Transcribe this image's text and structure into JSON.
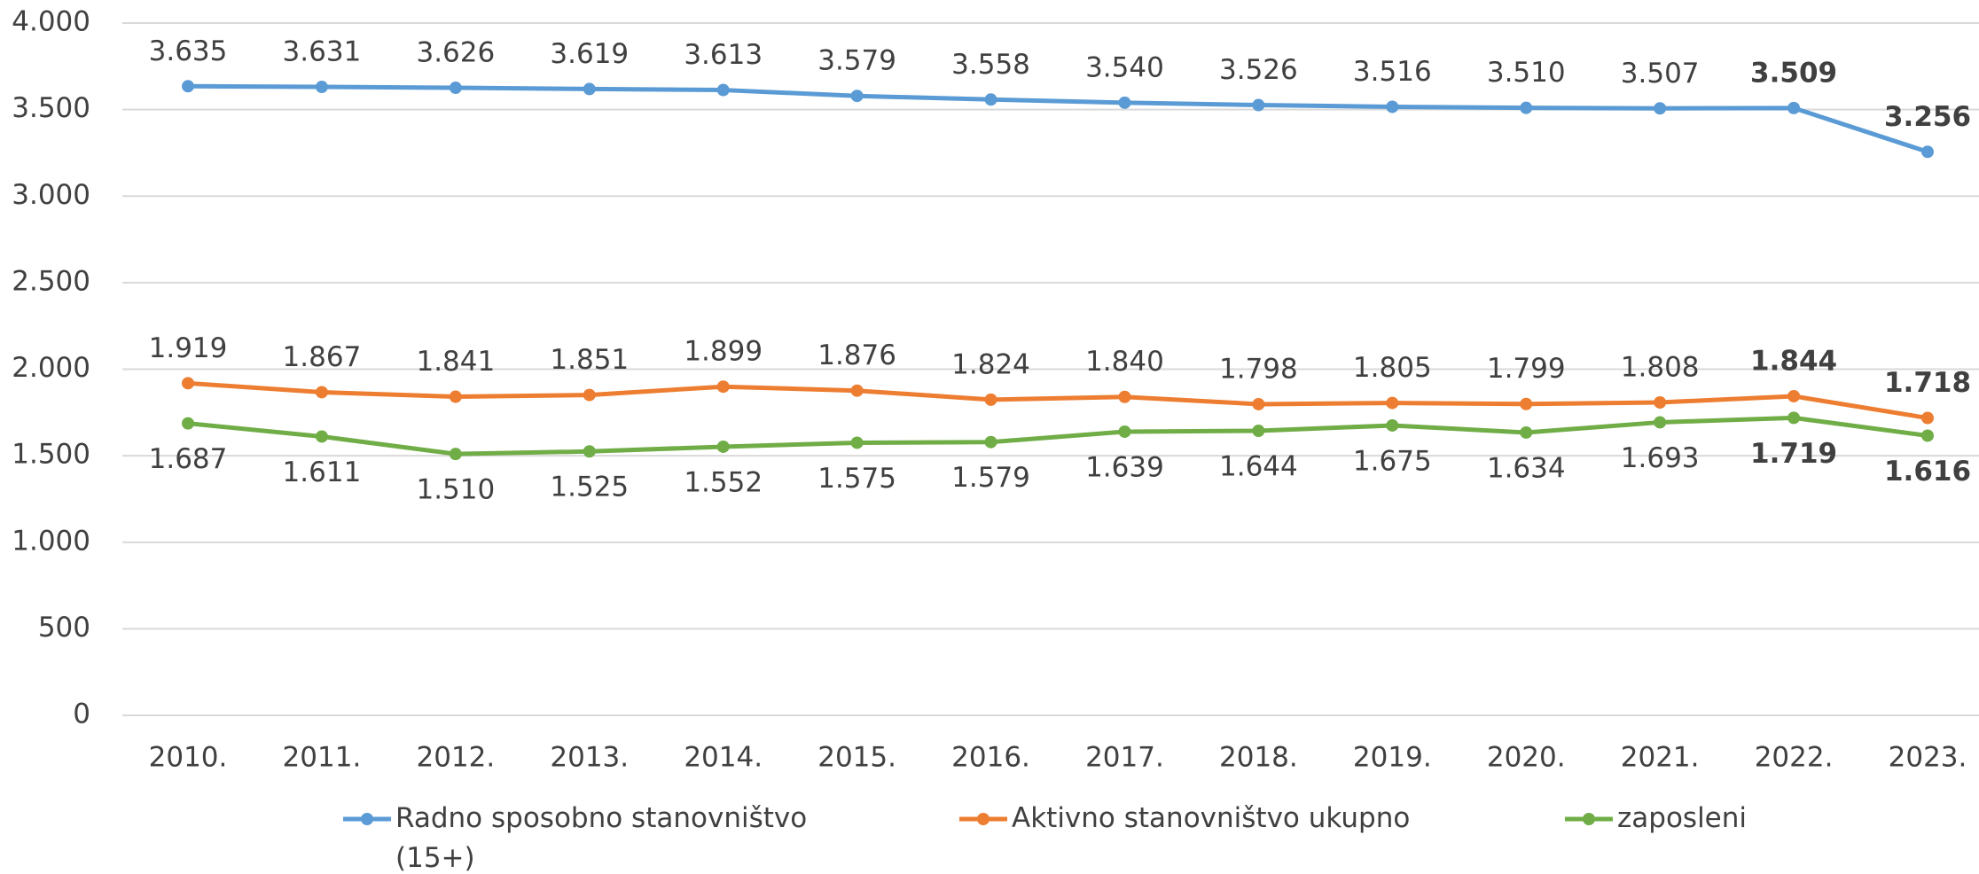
{
  "chart_data": {
    "type": "line",
    "categories": [
      "2010.",
      "2011.",
      "2012.",
      "2013.",
      "2014.",
      "2015.",
      "2016.",
      "2017.",
      "2018.",
      "2019.",
      "2020.",
      "2021.",
      "2022.",
      "2023."
    ],
    "series": [
      {
        "name": "Radno sposobno stanovništvo (15+)",
        "color": "#5b9bd5",
        "values": [
          3635,
          3631,
          3626,
          3619,
          3613,
          3579,
          3558,
          3540,
          3526,
          3516,
          3510,
          3507,
          3509,
          3256
        ],
        "value_labels": [
          "3.635",
          "3.631",
          "3.626",
          "3.619",
          "3.613",
          "3.579",
          "3.558",
          "3.540",
          "3.526",
          "3.516",
          "3.510",
          "3.507",
          "3.509",
          "3.256"
        ]
      },
      {
        "name": "Aktivno stanovništvo ukupno",
        "color": "#ed7d31",
        "values": [
          1919,
          1867,
          1841,
          1851,
          1899,
          1876,
          1824,
          1840,
          1798,
          1805,
          1799,
          1808,
          1844,
          1718
        ],
        "value_labels": [
          "1.919",
          "1.867",
          "1.841",
          "1.851",
          "1.899",
          "1.876",
          "1.824",
          "1.840",
          "1.798",
          "1.805",
          "1.799",
          "1.808",
          "1.844",
          "1.718"
        ]
      },
      {
        "name": "zaposleni",
        "color": "#70ad47",
        "values": [
          1687,
          1611,
          1510,
          1525,
          1552,
          1575,
          1579,
          1639,
          1644,
          1675,
          1634,
          1693,
          1719,
          1616
        ],
        "value_labels": [
          "1.687",
          "1.611",
          "1.510",
          "1.525",
          "1.552",
          "1.575",
          "1.579",
          "1.639",
          "1.644",
          "1.675",
          "1.634",
          "1.693",
          "1.719",
          "1.616"
        ]
      }
    ],
    "ylim": [
      0,
      4000
    ],
    "yticks": [
      0,
      500,
      {
        "value": 1000,
        "label": "1.000"
      },
      {
        "value": 1500,
        "label": "1.500"
      },
      {
        "value": 2000,
        "label": "2.000"
      },
      {
        "value": 2500,
        "label": "2.500"
      },
      {
        "value": 3000,
        "label": "3.000"
      },
      {
        "value": 3500,
        "label": "3.500"
      },
      {
        "value": 4000,
        "label": "4.000"
      }
    ],
    "grid": true,
    "legend": "bottom"
  }
}
